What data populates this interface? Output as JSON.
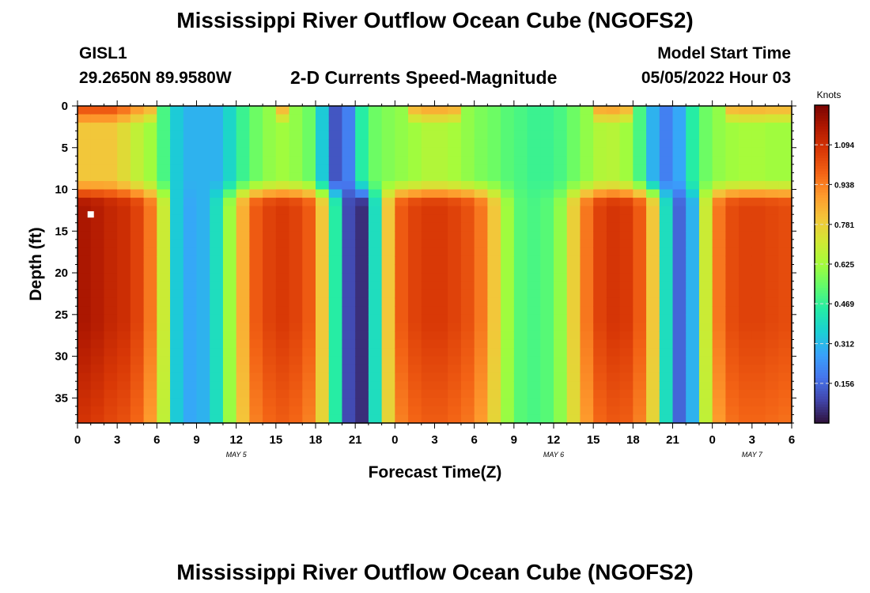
{
  "header": {
    "title": "Mississippi River Outflow Ocean Cube (NGOFS2)",
    "station": "GISL1",
    "location": "29.2650N  89.9580W",
    "subtitle": "2-D Currents Speed-Magnitude",
    "model_start_label": "Model Start Time",
    "model_start_value": "05/05/2022 Hour 03"
  },
  "footer": {
    "title": "Mississippi River Outflow Ocean Cube (NGOFS2)"
  },
  "chart_data": {
    "type": "heatmap",
    "title": "Mississippi River Outflow Ocean Cube (NGOFS2)",
    "subtitle": "2-D Currents Speed-Magnitude",
    "xlabel": "Forecast Time(Z)",
    "ylabel": "Depth (ft)",
    "colorbar_label": "Knots",
    "xlim": [
      0,
      54
    ],
    "ylim": [
      38,
      0
    ],
    "x_tick_labels": [
      "0",
      "3",
      "6",
      "9",
      "12",
      "15",
      "18",
      "21",
      "0",
      "3",
      "6",
      "9",
      "12",
      "15",
      "18",
      "21",
      "0",
      "3",
      "6"
    ],
    "y_ticks": [
      0,
      5,
      10,
      15,
      20,
      25,
      30,
      35
    ],
    "date_labels": [
      {
        "label": "MAY 5",
        "x": 12
      },
      {
        "label": "MAY 6",
        "x": 36
      },
      {
        "label": "MAY 7",
        "x": 51
      }
    ],
    "colorbar_ticks": [
      0.156,
      0.312,
      0.469,
      0.625,
      0.781,
      0.938,
      1.094
    ],
    "colorbar_range": [
      0.0,
      1.25
    ],
    "colors": [
      "#30123b",
      "#4145ab",
      "#4675ed",
      "#39a2fc",
      "#1bcfd4",
      "#24eca6",
      "#61fc6c",
      "#a4fc3b",
      "#d1e834",
      "#f3c63a",
      "#fe9b2d",
      "#f36315",
      "#d93806",
      "#b11901",
      "#7a0402"
    ],
    "near_surface_speed": [
      0.8,
      0.8,
      0.8,
      0.75,
      0.68,
      0.62,
      0.5,
      0.35,
      0.3,
      0.3,
      0.3,
      0.38,
      0.48,
      0.55,
      0.6,
      0.62,
      0.6,
      0.55,
      0.35,
      0.12,
      0.2,
      0.45,
      0.55,
      0.58,
      0.6,
      0.62,
      0.65,
      0.65,
      0.63,
      0.6,
      0.57,
      0.55,
      0.52,
      0.5,
      0.48,
      0.48,
      0.5,
      0.55,
      0.6,
      0.65,
      0.66,
      0.62,
      0.5,
      0.3,
      0.2,
      0.28,
      0.45,
      0.55,
      0.6,
      0.62,
      0.63,
      0.63,
      0.62,
      0.62
    ],
    "depth_max_speed": [
      1.17,
      1.15,
      1.12,
      1.1,
      1.05,
      0.95,
      0.7,
      0.35,
      0.28,
      0.3,
      0.4,
      0.62,
      0.85,
      1.0,
      1.05,
      1.07,
      1.05,
      1.0,
      0.8,
      0.45,
      0.1,
      0.05,
      0.4,
      0.8,
      1.0,
      1.05,
      1.07,
      1.07,
      1.05,
      1.02,
      0.95,
      0.8,
      0.62,
      0.52,
      0.5,
      0.52,
      0.6,
      0.78,
      0.95,
      1.05,
      1.08,
      1.07,
      1.0,
      0.8,
      0.4,
      0.15,
      0.3,
      0.7,
      0.95,
      1.03,
      1.05,
      1.05,
      1.04,
      1.03
    ],
    "marker": {
      "x": 1,
      "depth": 13
    }
  }
}
